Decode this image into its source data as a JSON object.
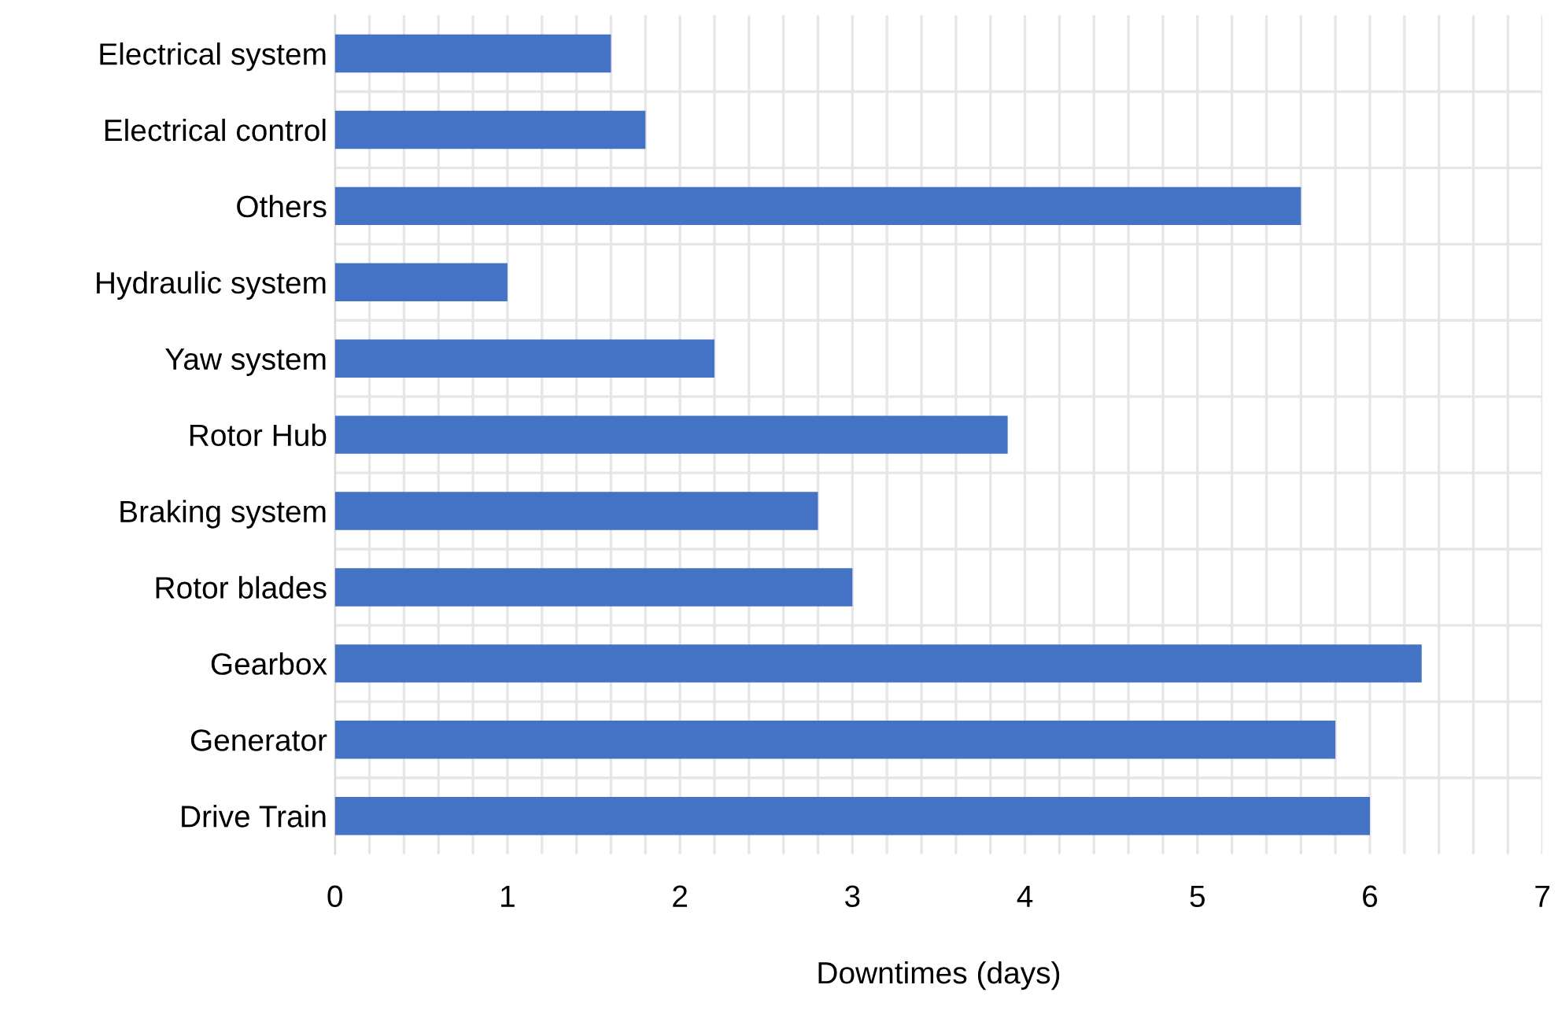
{
  "chart_data": {
    "type": "bar",
    "orientation": "horizontal",
    "xlabel": "Downtimes (days)",
    "categories": [
      "Electrical system",
      "Electrical control",
      "Others",
      "Hydraulic system",
      "Yaw system",
      "Rotor Hub",
      "Braking system",
      "Rotor blades",
      "Gearbox",
      "Generator",
      "Drive Train"
    ],
    "values": [
      1.6,
      1.8,
      5.6,
      1.0,
      2.2,
      3.9,
      2.8,
      3.0,
      6.3,
      5.8,
      6.0
    ],
    "color": "#4472c4",
    "xlim": [
      0,
      7
    ],
    "xticks": [
      0,
      {
        "value": 0.2,
        "label": null
      },
      {
        "value": 0.4,
        "label": null
      },
      {
        "value": 0.6,
        "label": null
      },
      {
        "value": 0.8,
        "label": null
      },
      1,
      {
        "value": 1.2,
        "label": null
      },
      {
        "value": 1.4,
        "label": null
      },
      {
        "value": 1.6,
        "label": null
      },
      {
        "value": 1.8,
        "label": null
      },
      2,
      {
        "value": 2.2,
        "label": null
      },
      {
        "value": 2.4,
        "label": null
      },
      {
        "value": 2.6,
        "label": null
      },
      {
        "value": 2.8,
        "label": null
      },
      3,
      {
        "value": 3.2,
        "label": null
      },
      {
        "value": 3.4,
        "label": null
      },
      {
        "value": 3.6,
        "label": null
      },
      {
        "value": 3.8,
        "label": null
      },
      4,
      {
        "value": 4.2,
        "label": null
      },
      {
        "value": 4.4,
        "label": null
      },
      {
        "value": 4.6,
        "label": null
      },
      {
        "value": 4.8,
        "label": null
      },
      5,
      {
        "value": 5.2,
        "label": null
      },
      {
        "value": 5.4,
        "label": null
      },
      {
        "value": 5.6,
        "label": null
      },
      {
        "value": 5.8,
        "label": null
      },
      6,
      {
        "value": 6.2,
        "label": null
      },
      {
        "value": 6.4,
        "label": null
      },
      {
        "value": 6.6,
        "label": null
      },
      {
        "value": 6.8,
        "label": null
      },
      7
    ],
    "grid": true
  }
}
